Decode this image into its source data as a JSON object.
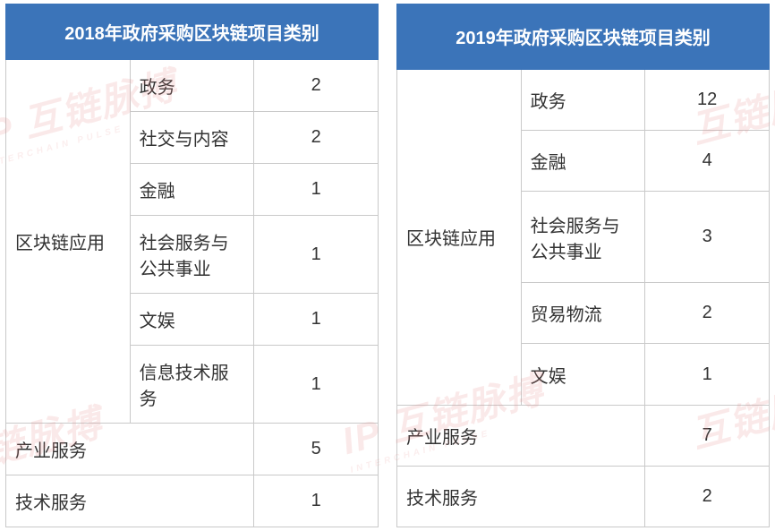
{
  "watermark": {
    "brand_cn": "互链脉搏",
    "brand_en": "INTERCHAIN PULSE",
    "prefix": "IP"
  },
  "tables": {
    "left": {
      "title": "2018年政府采购区块链项目类别",
      "group_label": "区块链应用",
      "group_rows": [
        {
          "label": "政务",
          "value": "2"
        },
        {
          "label": "社交与内容",
          "value": "2"
        },
        {
          "label": "金融",
          "value": "1"
        },
        {
          "label": "社会服务与公共事业",
          "value": "1"
        },
        {
          "label": "文娱",
          "value": "1"
        },
        {
          "label": "信息技术服务",
          "value": "1"
        }
      ],
      "flat_rows": [
        {
          "label": "产业服务",
          "value": "5"
        },
        {
          "label": "技术服务",
          "value": "1"
        }
      ]
    },
    "right": {
      "title": "2019年政府采购区块链项目类别",
      "group_label": "区块链应用",
      "group_rows": [
        {
          "label": "政务",
          "value": "12"
        },
        {
          "label": "金融",
          "value": "4"
        },
        {
          "label": "社会服务与公共事业",
          "value": "3"
        },
        {
          "label": "贸易物流",
          "value": "2"
        },
        {
          "label": "文娱",
          "value": "1"
        }
      ],
      "flat_rows": [
        {
          "label": "产业服务",
          "value": "7"
        },
        {
          "label": "技术服务",
          "value": "2"
        }
      ]
    }
  },
  "style": {
    "header_bg": "#3b74b9",
    "header_fg": "#ffffff",
    "cell_border": "#c9c9c9",
    "cell_fg": "#333333",
    "body_bg": "#ffffff",
    "font_size_header": 20,
    "font_size_cell": 20,
    "watermark_color": "#e78a8a",
    "watermark_opacity": 0.18
  }
}
